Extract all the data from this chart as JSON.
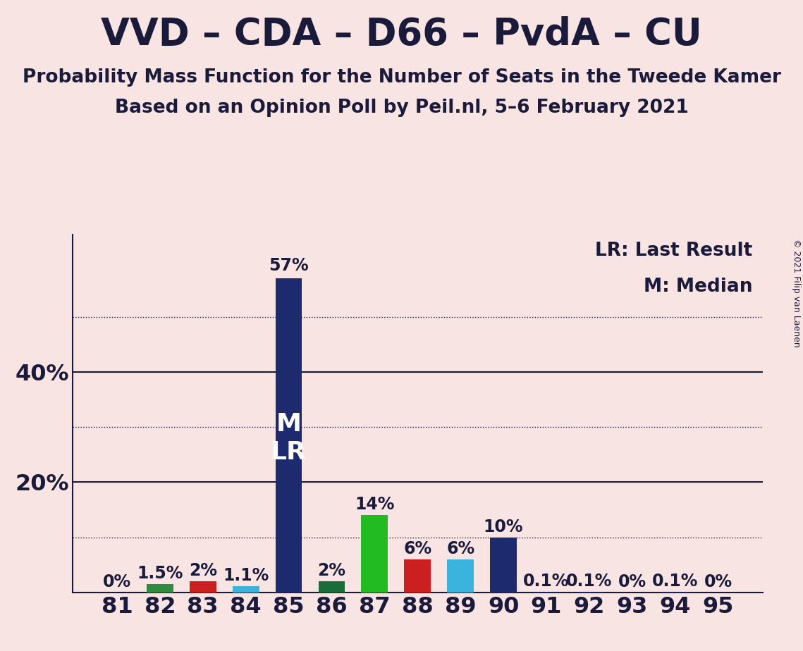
{
  "title": "VVD – CDA – D66 – PvdA – CU",
  "subtitle1": "Probability Mass Function for the Number of Seats in the Tweede Kamer",
  "subtitle2": "Based on an Opinion Poll by Peil.nl, 5–6 February 2021",
  "copyright": "© 2021 Filip van Laenen",
  "categories": [
    81,
    82,
    83,
    84,
    85,
    86,
    87,
    88,
    89,
    90,
    91,
    92,
    93,
    94,
    95
  ],
  "values": [
    0.0,
    1.5,
    2.0,
    1.1,
    57.0,
    2.0,
    14.0,
    6.0,
    6.0,
    10.0,
    0.1,
    0.1,
    0.0,
    0.1,
    0.0
  ],
  "labels": [
    "0%",
    "1.5%",
    "2%",
    "1.1%",
    "57%",
    "2%",
    "14%",
    "6%",
    "6%",
    "10%",
    "0.1%",
    "0.1%",
    "0%",
    "0.1%",
    "0%"
  ],
  "colors": [
    "#1e2a6e",
    "#2e8b40",
    "#cc2020",
    "#3ab4dd",
    "#1e2a6e",
    "#1a6c38",
    "#22bb22",
    "#cc2020",
    "#3ab4dd",
    "#1e2a6e",
    "#1e2a6e",
    "#1e2a6e",
    "#1e2a6e",
    "#1e2a6e",
    "#1e2a6e"
  ],
  "background_color": "#f9e4e4",
  "text_color": "#1a1a3a",
  "white": "#ffffff",
  "ylim": [
    0,
    65
  ],
  "dotted_lines": [
    10,
    30,
    50
  ],
  "solid_lines": [
    20,
    40
  ],
  "ytick_positions": [
    20,
    40
  ],
  "ytick_labels": [
    "20%",
    "40%"
  ],
  "legend_lr": "LR: Last Result",
  "legend_m": "M: Median",
  "title_fontsize": 38,
  "subtitle_fontsize": 19,
  "axis_tick_fontsize": 23,
  "bar_label_fontsize": 17,
  "inside_label_fontsize": 26
}
